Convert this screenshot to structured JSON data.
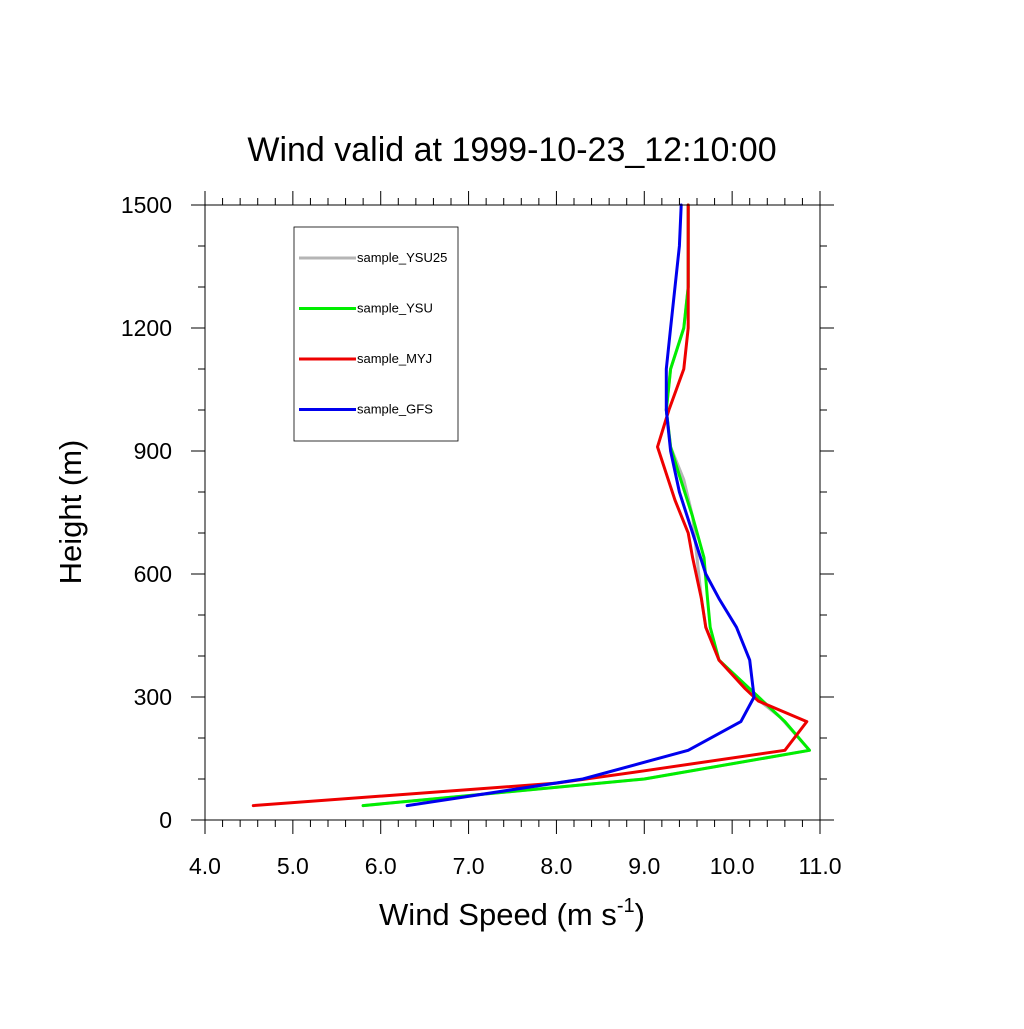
{
  "chart_data": {
    "type": "line",
    "title": "Wind valid at 1999-10-23_12:10:00",
    "xlabel": "Wind Speed (m s",
    "xlabel_sup": "-1",
    "xlabel_close": ")",
    "ylabel": "Height (m)",
    "xlim": [
      4.0,
      11.0
    ],
    "ylim": [
      0,
      1500
    ],
    "xticks": [
      4.0,
      5.0,
      6.0,
      7.0,
      8.0,
      9.0,
      10.0,
      11.0
    ],
    "xtick_labels": [
      "4.0",
      "5.0",
      "6.0",
      "7.0",
      "8.0",
      "9.0",
      "10.0",
      "11.0"
    ],
    "yticks": [
      0,
      300,
      600,
      900,
      1200,
      1500
    ],
    "ytick_labels": [
      "0",
      "300",
      "600",
      "900",
      "1200",
      "1500"
    ],
    "grid": false,
    "legend_position": "top-left",
    "series": [
      {
        "name": "sample_YSU25",
        "color": "#b5b5b5",
        "points": [
          [
            5.8,
            35
          ],
          [
            9.0,
            100
          ],
          [
            10.88,
            170
          ],
          [
            10.55,
            250
          ],
          [
            10.2,
            310
          ],
          [
            9.85,
            390
          ],
          [
            9.7,
            470
          ],
          [
            9.65,
            540
          ],
          [
            9.6,
            640
          ],
          [
            9.55,
            740
          ],
          [
            9.45,
            830
          ],
          [
            9.3,
            910
          ],
          [
            9.25,
            1000
          ],
          [
            9.3,
            1100
          ],
          [
            9.45,
            1200
          ],
          [
            9.5,
            1300
          ],
          [
            9.5,
            1400
          ],
          [
            9.5,
            1500
          ]
        ]
      },
      {
        "name": "sample_YSU",
        "color": "#00ee00",
        "points": [
          [
            5.8,
            35
          ],
          [
            9.0,
            100
          ],
          [
            10.88,
            170
          ],
          [
            10.6,
            240
          ],
          [
            10.3,
            300
          ],
          [
            9.85,
            390
          ],
          [
            9.75,
            470
          ],
          [
            9.72,
            540
          ],
          [
            9.68,
            640
          ],
          [
            9.55,
            740
          ],
          [
            9.4,
            840
          ],
          [
            9.3,
            910
          ],
          [
            9.25,
            1000
          ],
          [
            9.3,
            1100
          ],
          [
            9.45,
            1200
          ],
          [
            9.5,
            1300
          ],
          [
            9.5,
            1400
          ],
          [
            9.5,
            1500
          ]
        ]
      },
      {
        "name": "sample_MYJ",
        "color": "#ee0000",
        "points": [
          [
            4.55,
            35
          ],
          [
            8.0,
            90
          ],
          [
            9.0,
            120
          ],
          [
            10.6,
            170
          ],
          [
            10.85,
            240
          ],
          [
            10.3,
            290
          ],
          [
            10.15,
            320
          ],
          [
            9.85,
            390
          ],
          [
            9.7,
            470
          ],
          [
            9.65,
            540
          ],
          [
            9.55,
            640
          ],
          [
            9.5,
            700
          ],
          [
            9.35,
            780
          ],
          [
            9.15,
            910
          ],
          [
            9.28,
            1000
          ],
          [
            9.45,
            1100
          ],
          [
            9.5,
            1200
          ],
          [
            9.5,
            1300
          ],
          [
            9.5,
            1400
          ],
          [
            9.5,
            1500
          ]
        ]
      },
      {
        "name": "sample_GFS",
        "color": "#0000ee",
        "points": [
          [
            6.3,
            35
          ],
          [
            8.3,
            100
          ],
          [
            9.5,
            170
          ],
          [
            10.1,
            240
          ],
          [
            10.25,
            300
          ],
          [
            10.2,
            390
          ],
          [
            10.05,
            470
          ],
          [
            9.85,
            540
          ],
          [
            9.7,
            600
          ],
          [
            9.55,
            700
          ],
          [
            9.4,
            800
          ],
          [
            9.3,
            900
          ],
          [
            9.25,
            1000
          ],
          [
            9.25,
            1100
          ],
          [
            9.3,
            1200
          ],
          [
            9.35,
            1300
          ],
          [
            9.4,
            1400
          ],
          [
            9.42,
            1500
          ]
        ]
      }
    ]
  }
}
